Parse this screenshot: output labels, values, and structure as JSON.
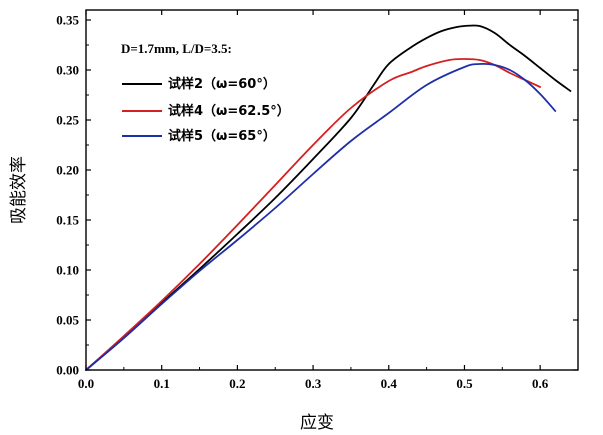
{
  "chart_data": {
    "type": "line",
    "title": "",
    "xlabel": "应变",
    "ylabel": "吸能效率",
    "xlim": [
      0.0,
      0.65
    ],
    "ylim": [
      0.0,
      0.36
    ],
    "xticks": [
      0.0,
      0.1,
      0.2,
      0.3,
      0.4,
      0.5,
      0.6
    ],
    "yticks": [
      0.0,
      0.05,
      0.1,
      0.15,
      0.2,
      0.25,
      0.3,
      0.35
    ],
    "x_tick_labels": [
      "0.0",
      "0.1",
      "0.2",
      "0.3",
      "0.4",
      "0.5",
      "0.6"
    ],
    "y_tick_labels": [
      "0.00",
      "0.05",
      "0.10",
      "0.15",
      "0.20",
      "0.25",
      "0.30",
      "0.35"
    ],
    "legend_title": "D=1.7mm, L/D=3.5:",
    "legend_position": "top-left",
    "grid": false,
    "series": [
      {
        "name": "试样2（ω=60°）",
        "color": "#000000",
        "x": [
          0.0,
          0.05,
          0.1,
          0.15,
          0.2,
          0.25,
          0.3,
          0.35,
          0.38,
          0.4,
          0.43,
          0.45,
          0.47,
          0.49,
          0.5,
          0.52,
          0.54,
          0.56,
          0.58,
          0.6,
          0.62,
          0.64
        ],
        "y": [
          0.0,
          0.032,
          0.067,
          0.101,
          0.136,
          0.172,
          0.211,
          0.252,
          0.285,
          0.306,
          0.323,
          0.332,
          0.339,
          0.343,
          0.344,
          0.344,
          0.337,
          0.325,
          0.314,
          0.302,
          0.29,
          0.279
        ]
      },
      {
        "name": "试样4（ω=62.5°）",
        "color": "#d42020",
        "x": [
          0.0,
          0.05,
          0.1,
          0.15,
          0.2,
          0.25,
          0.3,
          0.35,
          0.4,
          0.43,
          0.45,
          0.48,
          0.5,
          0.52,
          0.54,
          0.56,
          0.58,
          0.6
        ],
        "y": [
          0.0,
          0.034,
          0.069,
          0.106,
          0.145,
          0.185,
          0.225,
          0.262,
          0.289,
          0.298,
          0.304,
          0.31,
          0.311,
          0.31,
          0.305,
          0.297,
          0.29,
          0.283
        ]
      },
      {
        "name": "试样5（ω=65°）",
        "color": "#1f2fa8",
        "x": [
          0.0,
          0.05,
          0.1,
          0.15,
          0.2,
          0.25,
          0.3,
          0.35,
          0.4,
          0.45,
          0.5,
          0.52,
          0.54,
          0.56,
          0.58,
          0.6,
          0.62
        ],
        "y": [
          0.0,
          0.032,
          0.066,
          0.099,
          0.13,
          0.162,
          0.196,
          0.229,
          0.257,
          0.285,
          0.303,
          0.306,
          0.305,
          0.3,
          0.29,
          0.276,
          0.259
        ]
      }
    ]
  }
}
